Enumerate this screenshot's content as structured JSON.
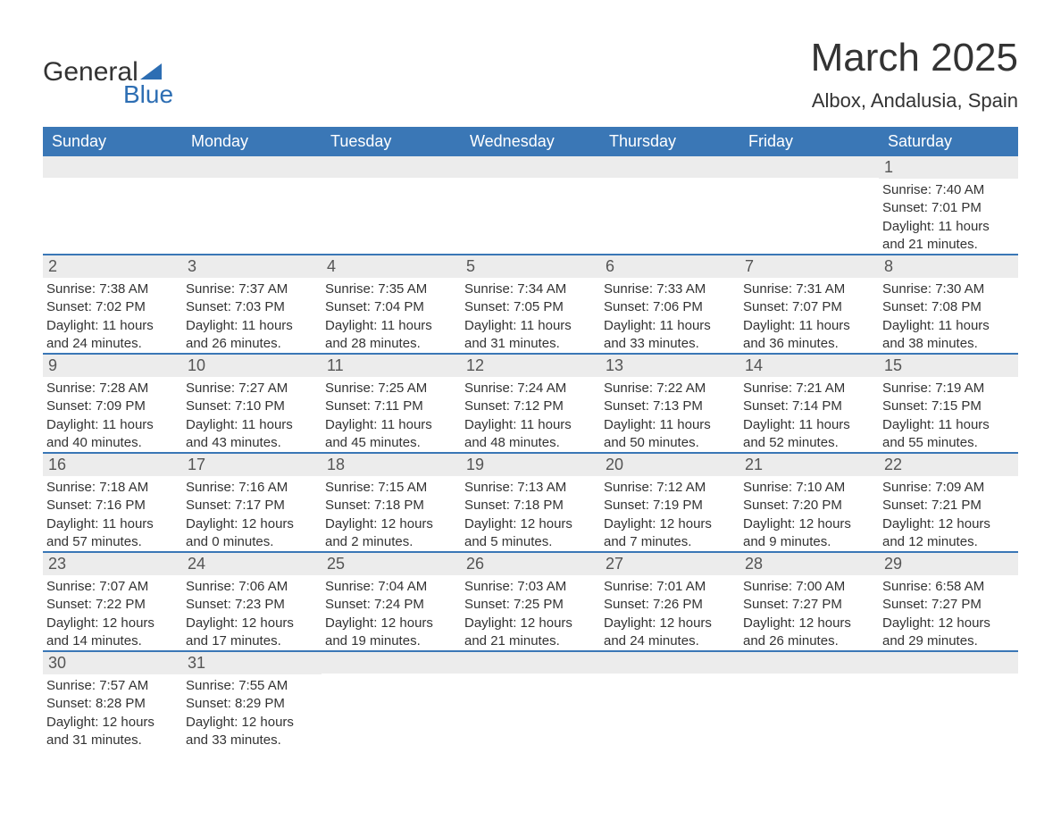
{
  "brand": {
    "word1": "General",
    "word2": "Blue",
    "accent_color": "#2d6eb3"
  },
  "title": "March 2025",
  "subtitle": "Albox, Andalusia, Spain",
  "header_bg": "#3a77b6",
  "header_fg": "#ffffff",
  "daynum_bg": "#ececec",
  "row_divider_color": "#3a77b6",
  "text_color": "#333333",
  "day_labels": [
    "Sunday",
    "Monday",
    "Tuesday",
    "Wednesday",
    "Thursday",
    "Friday",
    "Saturday"
  ],
  "weeks": [
    [
      null,
      null,
      null,
      null,
      null,
      null,
      {
        "n": "1",
        "sunrise": "Sunrise: 7:40 AM",
        "sunset": "Sunset: 7:01 PM",
        "day1": "Daylight: 11 hours",
        "day2": "and 21 minutes."
      }
    ],
    [
      {
        "n": "2",
        "sunrise": "Sunrise: 7:38 AM",
        "sunset": "Sunset: 7:02 PM",
        "day1": "Daylight: 11 hours",
        "day2": "and 24 minutes."
      },
      {
        "n": "3",
        "sunrise": "Sunrise: 7:37 AM",
        "sunset": "Sunset: 7:03 PM",
        "day1": "Daylight: 11 hours",
        "day2": "and 26 minutes."
      },
      {
        "n": "4",
        "sunrise": "Sunrise: 7:35 AM",
        "sunset": "Sunset: 7:04 PM",
        "day1": "Daylight: 11 hours",
        "day2": "and 28 minutes."
      },
      {
        "n": "5",
        "sunrise": "Sunrise: 7:34 AM",
        "sunset": "Sunset: 7:05 PM",
        "day1": "Daylight: 11 hours",
        "day2": "and 31 minutes."
      },
      {
        "n": "6",
        "sunrise": "Sunrise: 7:33 AM",
        "sunset": "Sunset: 7:06 PM",
        "day1": "Daylight: 11 hours",
        "day2": "and 33 minutes."
      },
      {
        "n": "7",
        "sunrise": "Sunrise: 7:31 AM",
        "sunset": "Sunset: 7:07 PM",
        "day1": "Daylight: 11 hours",
        "day2": "and 36 minutes."
      },
      {
        "n": "8",
        "sunrise": "Sunrise: 7:30 AM",
        "sunset": "Sunset: 7:08 PM",
        "day1": "Daylight: 11 hours",
        "day2": "and 38 minutes."
      }
    ],
    [
      {
        "n": "9",
        "sunrise": "Sunrise: 7:28 AM",
        "sunset": "Sunset: 7:09 PM",
        "day1": "Daylight: 11 hours",
        "day2": "and 40 minutes."
      },
      {
        "n": "10",
        "sunrise": "Sunrise: 7:27 AM",
        "sunset": "Sunset: 7:10 PM",
        "day1": "Daylight: 11 hours",
        "day2": "and 43 minutes."
      },
      {
        "n": "11",
        "sunrise": "Sunrise: 7:25 AM",
        "sunset": "Sunset: 7:11 PM",
        "day1": "Daylight: 11 hours",
        "day2": "and 45 minutes."
      },
      {
        "n": "12",
        "sunrise": "Sunrise: 7:24 AM",
        "sunset": "Sunset: 7:12 PM",
        "day1": "Daylight: 11 hours",
        "day2": "and 48 minutes."
      },
      {
        "n": "13",
        "sunrise": "Sunrise: 7:22 AM",
        "sunset": "Sunset: 7:13 PM",
        "day1": "Daylight: 11 hours",
        "day2": "and 50 minutes."
      },
      {
        "n": "14",
        "sunrise": "Sunrise: 7:21 AM",
        "sunset": "Sunset: 7:14 PM",
        "day1": "Daylight: 11 hours",
        "day2": "and 52 minutes."
      },
      {
        "n": "15",
        "sunrise": "Sunrise: 7:19 AM",
        "sunset": "Sunset: 7:15 PM",
        "day1": "Daylight: 11 hours",
        "day2": "and 55 minutes."
      }
    ],
    [
      {
        "n": "16",
        "sunrise": "Sunrise: 7:18 AM",
        "sunset": "Sunset: 7:16 PM",
        "day1": "Daylight: 11 hours",
        "day2": "and 57 minutes."
      },
      {
        "n": "17",
        "sunrise": "Sunrise: 7:16 AM",
        "sunset": "Sunset: 7:17 PM",
        "day1": "Daylight: 12 hours",
        "day2": "and 0 minutes."
      },
      {
        "n": "18",
        "sunrise": "Sunrise: 7:15 AM",
        "sunset": "Sunset: 7:18 PM",
        "day1": "Daylight: 12 hours",
        "day2": "and 2 minutes."
      },
      {
        "n": "19",
        "sunrise": "Sunrise: 7:13 AM",
        "sunset": "Sunset: 7:18 PM",
        "day1": "Daylight: 12 hours",
        "day2": "and 5 minutes."
      },
      {
        "n": "20",
        "sunrise": "Sunrise: 7:12 AM",
        "sunset": "Sunset: 7:19 PM",
        "day1": "Daylight: 12 hours",
        "day2": "and 7 minutes."
      },
      {
        "n": "21",
        "sunrise": "Sunrise: 7:10 AM",
        "sunset": "Sunset: 7:20 PM",
        "day1": "Daylight: 12 hours",
        "day2": "and 9 minutes."
      },
      {
        "n": "22",
        "sunrise": "Sunrise: 7:09 AM",
        "sunset": "Sunset: 7:21 PM",
        "day1": "Daylight: 12 hours",
        "day2": "and 12 minutes."
      }
    ],
    [
      {
        "n": "23",
        "sunrise": "Sunrise: 7:07 AM",
        "sunset": "Sunset: 7:22 PM",
        "day1": "Daylight: 12 hours",
        "day2": "and 14 minutes."
      },
      {
        "n": "24",
        "sunrise": "Sunrise: 7:06 AM",
        "sunset": "Sunset: 7:23 PM",
        "day1": "Daylight: 12 hours",
        "day2": "and 17 minutes."
      },
      {
        "n": "25",
        "sunrise": "Sunrise: 7:04 AM",
        "sunset": "Sunset: 7:24 PM",
        "day1": "Daylight: 12 hours",
        "day2": "and 19 minutes."
      },
      {
        "n": "26",
        "sunrise": "Sunrise: 7:03 AM",
        "sunset": "Sunset: 7:25 PM",
        "day1": "Daylight: 12 hours",
        "day2": "and 21 minutes."
      },
      {
        "n": "27",
        "sunrise": "Sunrise: 7:01 AM",
        "sunset": "Sunset: 7:26 PM",
        "day1": "Daylight: 12 hours",
        "day2": "and 24 minutes."
      },
      {
        "n": "28",
        "sunrise": "Sunrise: 7:00 AM",
        "sunset": "Sunset: 7:27 PM",
        "day1": "Daylight: 12 hours",
        "day2": "and 26 minutes."
      },
      {
        "n": "29",
        "sunrise": "Sunrise: 6:58 AM",
        "sunset": "Sunset: 7:27 PM",
        "day1": "Daylight: 12 hours",
        "day2": "and 29 minutes."
      }
    ],
    [
      {
        "n": "30",
        "sunrise": "Sunrise: 7:57 AM",
        "sunset": "Sunset: 8:28 PM",
        "day1": "Daylight: 12 hours",
        "day2": "and 31 minutes."
      },
      {
        "n": "31",
        "sunrise": "Sunrise: 7:55 AM",
        "sunset": "Sunset: 8:29 PM",
        "day1": "Daylight: 12 hours",
        "day2": "and 33 minutes."
      },
      null,
      null,
      null,
      null,
      null
    ]
  ]
}
